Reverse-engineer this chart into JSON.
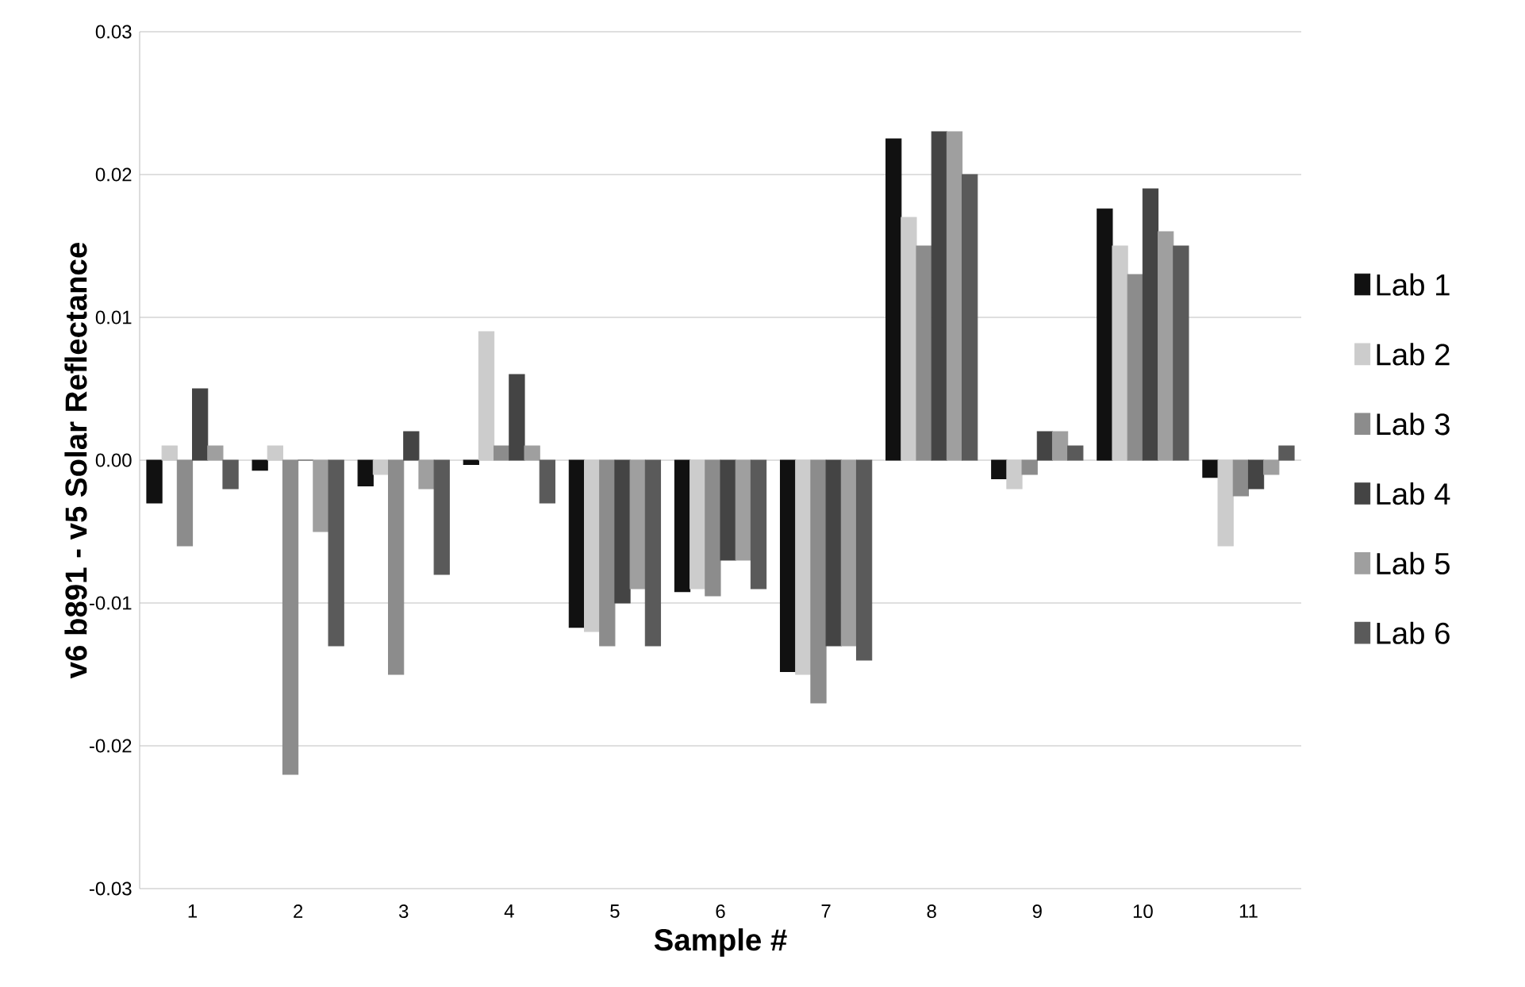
{
  "chart_data": {
    "type": "bar",
    "xlabel": "Sample #",
    "ylabel": "v6 b891 - v5 Solar Reflectance",
    "categories": [
      "1",
      "2",
      "3",
      "4",
      "5",
      "6",
      "7",
      "8",
      "9",
      "10",
      "11"
    ],
    "series": [
      {
        "name": "Lab 1",
        "color": "#111111",
        "values": [
          -0.003,
          -0.0007,
          -0.0018,
          -0.0003,
          -0.0117,
          -0.0092,
          -0.0148,
          0.0225,
          -0.0013,
          0.0176,
          -0.0012
        ]
      },
      {
        "name": "Lab 2",
        "color": "#cccccc",
        "values": [
          0.001,
          0.001,
          -0.001,
          0.009,
          -0.012,
          -0.009,
          -0.015,
          0.017,
          -0.002,
          0.015,
          -0.006
        ]
      },
      {
        "name": "Lab 3",
        "color": "#8c8c8c",
        "values": [
          -0.006,
          -0.022,
          -0.015,
          0.001,
          -0.013,
          -0.0095,
          -0.017,
          0.015,
          -0.001,
          0.013,
          -0.0025
        ]
      },
      {
        "name": "Lab 4",
        "color": "#444444",
        "values": [
          0.005,
          0,
          0.002,
          0.006,
          -0.01,
          -0.007,
          -0.013,
          0.023,
          0.002,
          0.019,
          -0.002
        ]
      },
      {
        "name": "Lab 5",
        "color": "#9f9f9f",
        "values": [
          0.001,
          -0.005,
          -0.002,
          0.001,
          -0.009,
          -0.007,
          -0.013,
          0.023,
          0.002,
          0.016,
          -0.001
        ]
      },
      {
        "name": "Lab 6",
        "color": "#5a5a5a",
        "values": [
          -0.002,
          -0.013,
          -0.008,
          -0.003,
          -0.013,
          -0.009,
          -0.014,
          0.02,
          0.001,
          0.015,
          0.001
        ]
      }
    ],
    "ylim": [
      -0.03,
      0.03
    ],
    "yticks": [
      -0.03,
      -0.02,
      -0.01,
      {
        "value": 0,
        "label": "0.00"
      },
      0.01,
      0.02,
      0.03
    ],
    "grid": "y",
    "legend": "right"
  }
}
